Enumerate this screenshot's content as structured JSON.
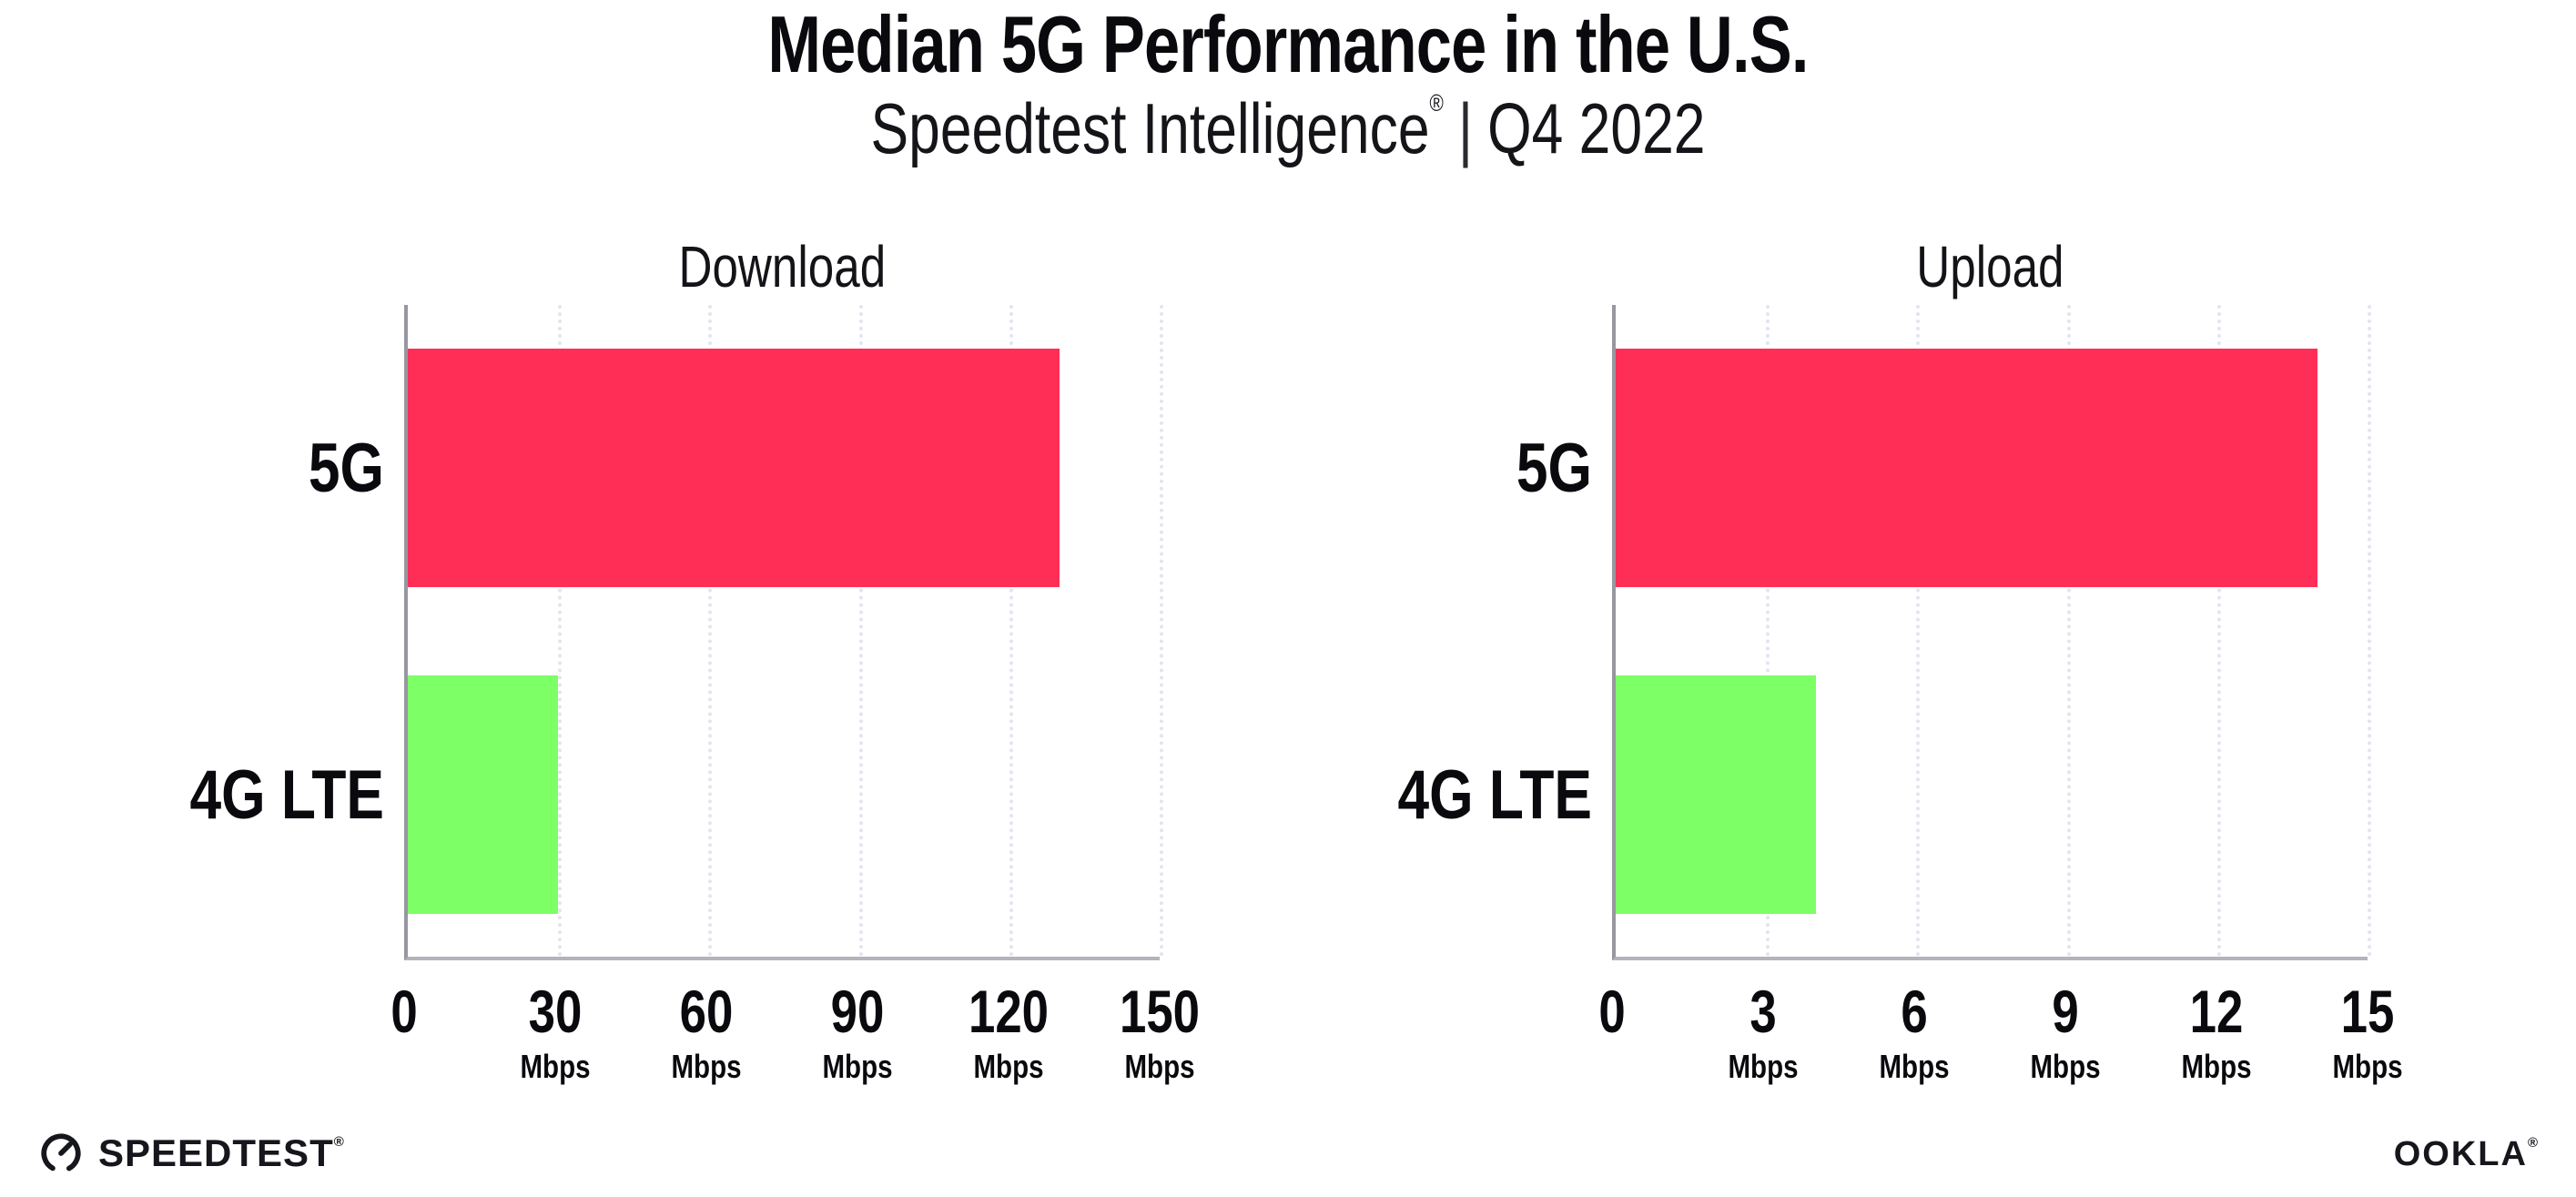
{
  "header": {
    "title": "Median 5G Performance in the U.S.",
    "subtitle_brand": "Speedtest Intelligence",
    "subtitle_reg": "®",
    "subtitle_sep": "|",
    "subtitle_period": "Q4 2022"
  },
  "chart_data": [
    {
      "type": "bar",
      "orientation": "horizontal",
      "title": "Download",
      "categories": [
        "5G",
        "4G LTE"
      ],
      "values": [
        130,
        30
      ],
      "unit": "Mbps",
      "xlim": [
        0,
        150
      ],
      "ticks": [
        {
          "value": 0,
          "label": "0",
          "unit": ""
        },
        {
          "value": 30,
          "label": "30",
          "unit": "Mbps"
        },
        {
          "value": 60,
          "label": "60",
          "unit": "Mbps"
        },
        {
          "value": 90,
          "label": "90",
          "unit": "Mbps"
        },
        {
          "value": 120,
          "label": "120",
          "unit": "Mbps"
        },
        {
          "value": 150,
          "label": "150",
          "unit": "Mbps"
        }
      ],
      "bar_colors": [
        "#ff2e56",
        "#7dff66"
      ],
      "grid": "vertical-dotted",
      "legend": "none"
    },
    {
      "type": "bar",
      "orientation": "horizontal",
      "title": "Upload",
      "categories": [
        "5G",
        "4G LTE"
      ],
      "values": [
        14,
        4
      ],
      "unit": "Mbps",
      "xlim": [
        0,
        15
      ],
      "ticks": [
        {
          "value": 0,
          "label": "0",
          "unit": ""
        },
        {
          "value": 3,
          "label": "3",
          "unit": "Mbps"
        },
        {
          "value": 6,
          "label": "6",
          "unit": "Mbps"
        },
        {
          "value": 9,
          "label": "9",
          "unit": "Mbps"
        },
        {
          "value": 12,
          "label": "12",
          "unit": "Mbps"
        },
        {
          "value": 15,
          "label": "15",
          "unit": "Mbps"
        }
      ],
      "bar_colors": [
        "#ff2e56",
        "#7dff66"
      ],
      "grid": "vertical-dotted",
      "legend": "none"
    }
  ],
  "footer": {
    "speedtest_logo_text": "SPEEDTEST",
    "speedtest_reg": "®",
    "ookla_logo_text": "OOKLA",
    "ookla_reg": "®"
  },
  "colors": {
    "bar_5g": "#ff2e56",
    "bar_4g_lte": "#7dff66",
    "gridline": "#e4e4ef",
    "axis": "#9b9ba3",
    "text": "#0c0c11",
    "background": "#ffffff"
  }
}
